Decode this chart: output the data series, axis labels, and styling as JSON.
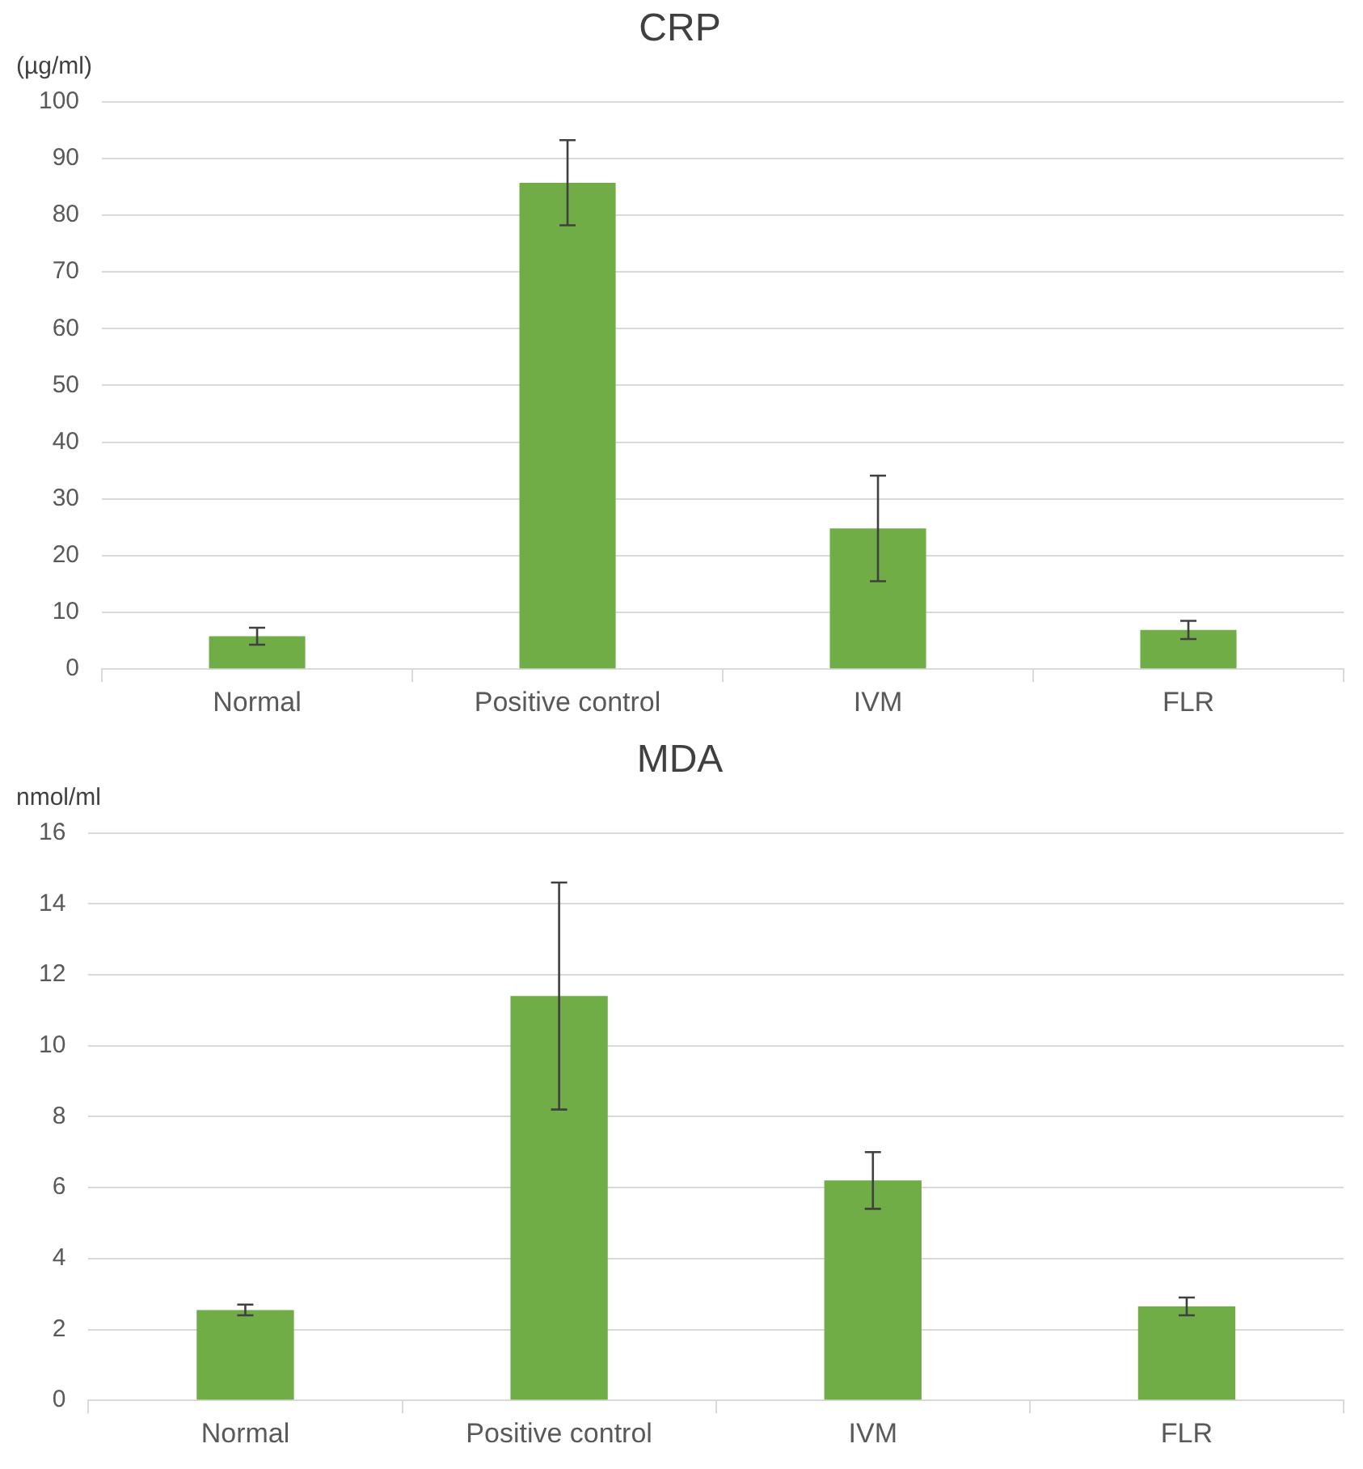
{
  "chart_data": [
    {
      "type": "bar",
      "title": "CRP",
      "ylabel": "(µg/ml)",
      "categories": [
        "Normal",
        "Positive control",
        "IVM",
        "FLR"
      ],
      "values": [
        5.8,
        85.7,
        24.8,
        6.9
      ],
      "errors": [
        1.5,
        7.5,
        9.3,
        1.6
      ],
      "color": "#70ad47",
      "ylim": [
        0,
        100
      ],
      "yticks": [
        0,
        10,
        20,
        30,
        40,
        50,
        60,
        70,
        80,
        90,
        100
      ],
      "grid": "y",
      "legend": false
    },
    {
      "type": "bar",
      "title": "MDA",
      "ylabel": "nmol/ml",
      "categories": [
        "Normal",
        "Positive control",
        "IVM",
        "FLR"
      ],
      "values": [
        2.55,
        11.4,
        6.2,
        2.65
      ],
      "errors": [
        0.15,
        3.2,
        0.8,
        0.25
      ],
      "color": "#70ad47",
      "ylim": [
        0,
        16
      ],
      "yticks": [
        0,
        2,
        4,
        6,
        8,
        10,
        12,
        14,
        16
      ],
      "grid": "y",
      "legend": false
    }
  ]
}
